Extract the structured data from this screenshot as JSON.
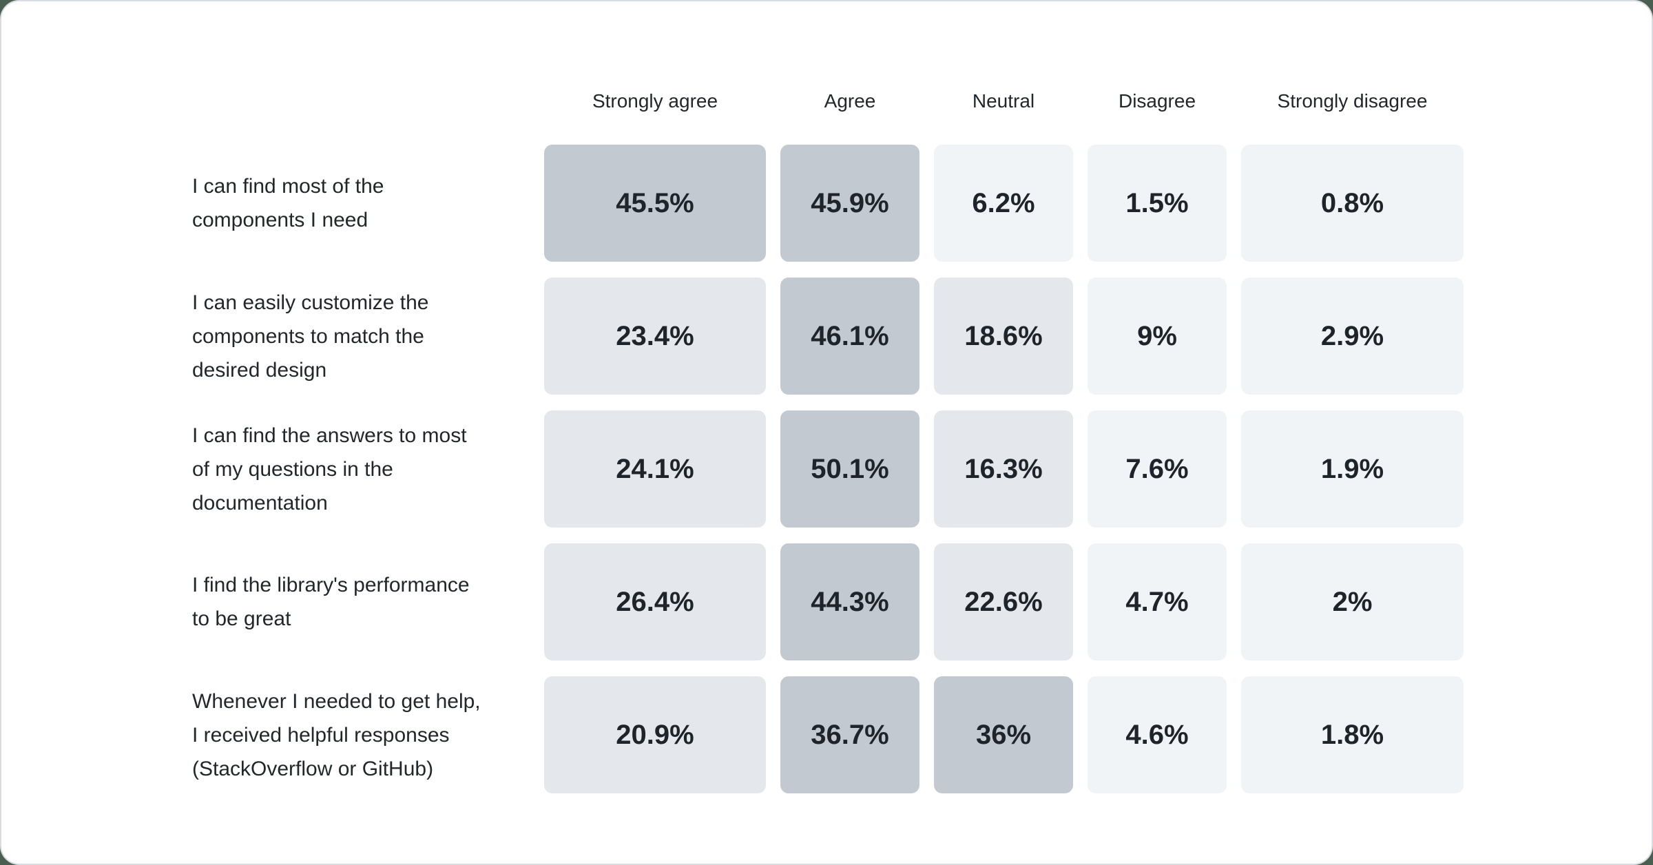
{
  "page": {
    "background_color": "#4b5f51",
    "card_background": "#ffffff",
    "card_border_color": "#d8dce2"
  },
  "chart_data": {
    "type": "heatmap",
    "title": "",
    "value_format": "percent",
    "text_color": "#21272a",
    "legend_position": "none",
    "grid": false,
    "columns": [
      "Strongly agree",
      "Agree",
      "Neutral",
      "Disagree",
      "Strongly disagree"
    ],
    "rows": [
      {
        "label": "I can find most of the components I need",
        "label_lines": [
          "I can find most of the",
          "components I need"
        ],
        "values": [
          45.5,
          45.9,
          6.2,
          1.5,
          0.8
        ],
        "display": [
          "45.5%",
          "45.9%",
          "6.2%",
          "1.5%",
          "0.8%"
        ]
      },
      {
        "label": "I can easily customize the components to match the desired design",
        "label_lines": [
          "I can easily customize the",
          "components to match the",
          "desired design"
        ],
        "values": [
          23.4,
          46.1,
          18.6,
          9,
          2.9
        ],
        "display": [
          "23.4%",
          "46.1%",
          "18.6%",
          "9%",
          "2.9%"
        ]
      },
      {
        "label": "I can find the answers to most of my questions in the documentation",
        "label_lines": [
          "I can find the answers to most",
          "of my questions in the",
          "documentation"
        ],
        "values": [
          24.1,
          50.1,
          16.3,
          7.6,
          1.9
        ],
        "display": [
          "24.1%",
          "50.1%",
          "16.3%",
          "7.6%",
          "1.9%"
        ]
      },
      {
        "label": "I find the library's performance to be great",
        "label_lines": [
          "I find the library's performance",
          "to be great"
        ],
        "values": [
          26.4,
          44.3,
          22.6,
          4.7,
          2
        ],
        "display": [
          "26.4%",
          "44.3%",
          "22.6%",
          "4.7%",
          "2%"
        ]
      },
      {
        "label": "Whenever I needed to get help, I received helpful responses (StackOverflow or GitHub)",
        "label_lines": [
          "Whenever I needed to get help,",
          "I received helpful responses",
          "(StackOverflow or GitHub)"
        ],
        "values": [
          20.9,
          36.7,
          36,
          4.6,
          1.8
        ],
        "display": [
          "20.9%",
          "36.7%",
          "36%",
          "4.6%",
          "1.8%"
        ]
      }
    ],
    "color_scale": [
      {
        "min": 36,
        "color": "#c3c9d1"
      },
      {
        "min": 12,
        "color": "#e4e7eb"
      },
      {
        "min": 0,
        "color": "#f1f4f7"
      }
    ]
  }
}
